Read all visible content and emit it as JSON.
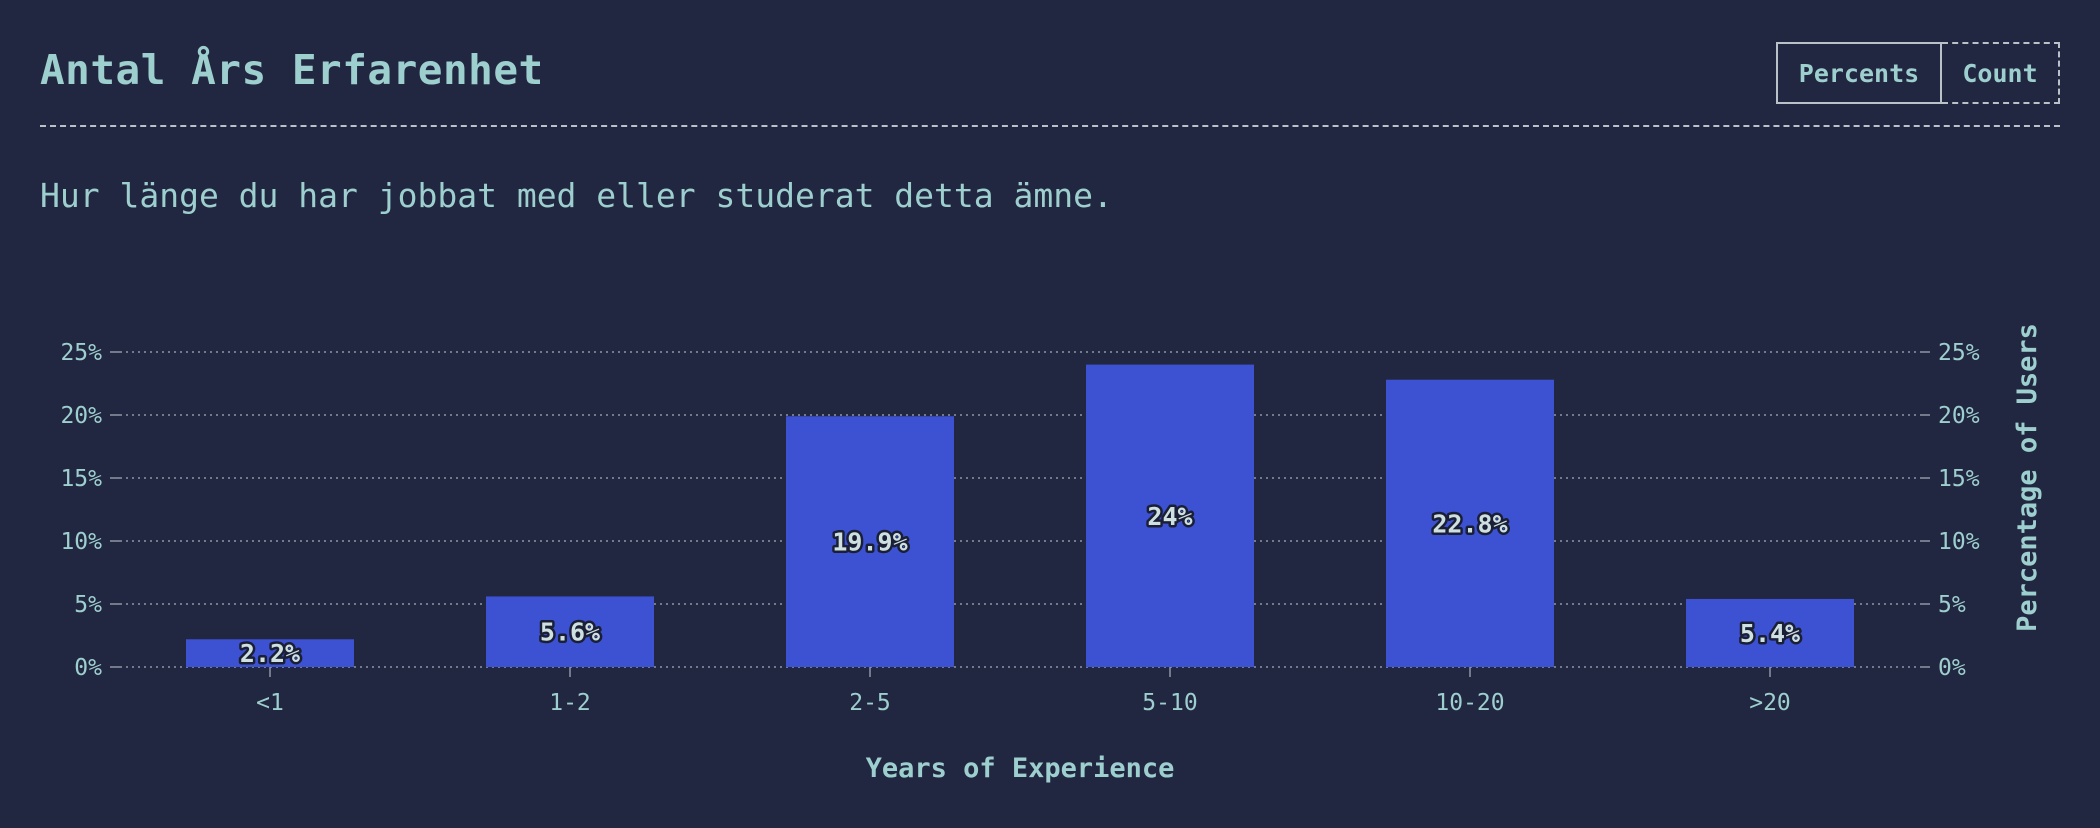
{
  "header": {
    "title": "Antal Års Erfarenhet",
    "toggle": {
      "percents_label": "Percents",
      "count_label": "Count"
    }
  },
  "description": "Hur länge du har jobbat med eller studerat detta ämne.",
  "colors": {
    "background": "#222741",
    "bar": "#3d51d3",
    "text": "#9ecfcf",
    "grid": "#8c97a6"
  },
  "chart_data": {
    "type": "bar",
    "categories": [
      "<1",
      "1-2",
      "2-5",
      "5-10",
      "10-20",
      ">20"
    ],
    "values": [
      2.2,
      5.6,
      19.9,
      24,
      22.8,
      5.4
    ],
    "data_labels": [
      "2.2%",
      "5.6%",
      "19.9%",
      "24%",
      "22.8%",
      "5.4%"
    ],
    "xlabel": "Years of Experience",
    "ylabel": "Percentage of Users",
    "ylim": [
      0,
      25
    ],
    "yticks": [
      0,
      5,
      10,
      15,
      20,
      25
    ],
    "ytick_labels": [
      "0%",
      "5%",
      "10%",
      "15%",
      "20%",
      "25%"
    ],
    "grid": true,
    "right_axis": true
  }
}
